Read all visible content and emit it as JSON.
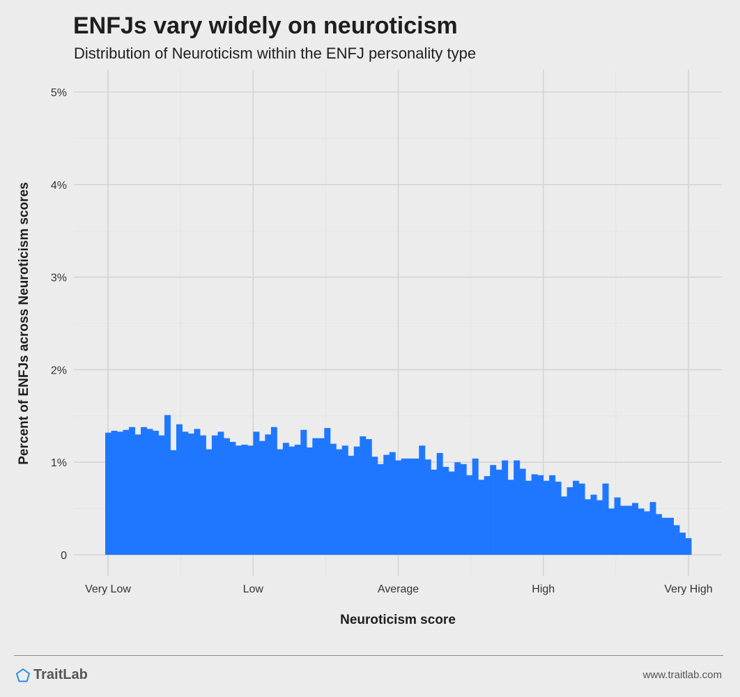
{
  "header": {
    "title": "ENFJs vary widely on neuroticism",
    "subtitle": "Distribution of Neuroticism within the ENFJ personality type"
  },
  "footer": {
    "brand": "TraitLab",
    "brand_icon": "pentagon-logo-icon",
    "site": "www.traitlab.com"
  },
  "colors": {
    "bar": "#1f77ff",
    "background": "#ececec",
    "grid_major": "#d4d4d4",
    "grid_minor": "#e3e3e3",
    "brand_icon": "#2b8be8"
  },
  "chart_data": {
    "type": "bar",
    "title": "ENFJs vary widely on neuroticism",
    "subtitle": "Distribution of Neuroticism within the ENFJ personality type",
    "xlabel": "Neuroticism score",
    "ylabel": "Percent of ENFJs across Neuroticism scores",
    "x_tick_labels": [
      "Very Low",
      "Low",
      "Average",
      "High",
      "Very High"
    ],
    "y_tick_labels": [
      "0",
      "1%",
      "2%",
      "3%",
      "4%",
      "5%"
    ],
    "ylim": [
      0,
      5
    ],
    "grid": true,
    "values": [
      1.32,
      1.34,
      1.33,
      1.35,
      1.38,
      1.3,
      1.38,
      1.36,
      1.34,
      1.29,
      1.51,
      1.13,
      1.41,
      1.33,
      1.31,
      1.36,
      1.29,
      1.14,
      1.29,
      1.33,
      1.26,
      1.22,
      1.18,
      1.19,
      1.18,
      1.33,
      1.23,
      1.3,
      1.38,
      1.14,
      1.21,
      1.17,
      1.19,
      1.35,
      1.16,
      1.26,
      1.26,
      1.37,
      1.2,
      1.14,
      1.18,
      1.07,
      1.17,
      1.28,
      1.25,
      1.06,
      0.98,
      1.08,
      1.11,
      1.02,
      1.04,
      1.04,
      1.04,
      1.18,
      1.03,
      0.92,
      1.1,
      0.95,
      0.9,
      1.0,
      0.98,
      0.86,
      1.04,
      0.81,
      0.85,
      0.97,
      0.92,
      1.02,
      0.81,
      1.02,
      0.93,
      0.8,
      0.87,
      0.86,
      0.8,
      0.86,
      0.79,
      0.63,
      0.73,
      0.8,
      0.77,
      0.6,
      0.65,
      0.59,
      0.77,
      0.5,
      0.62,
      0.53,
      0.53,
      0.56,
      0.5,
      0.47,
      0.57,
      0.44,
      0.4,
      0.4,
      0.32,
      0.24,
      0.18
    ]
  }
}
